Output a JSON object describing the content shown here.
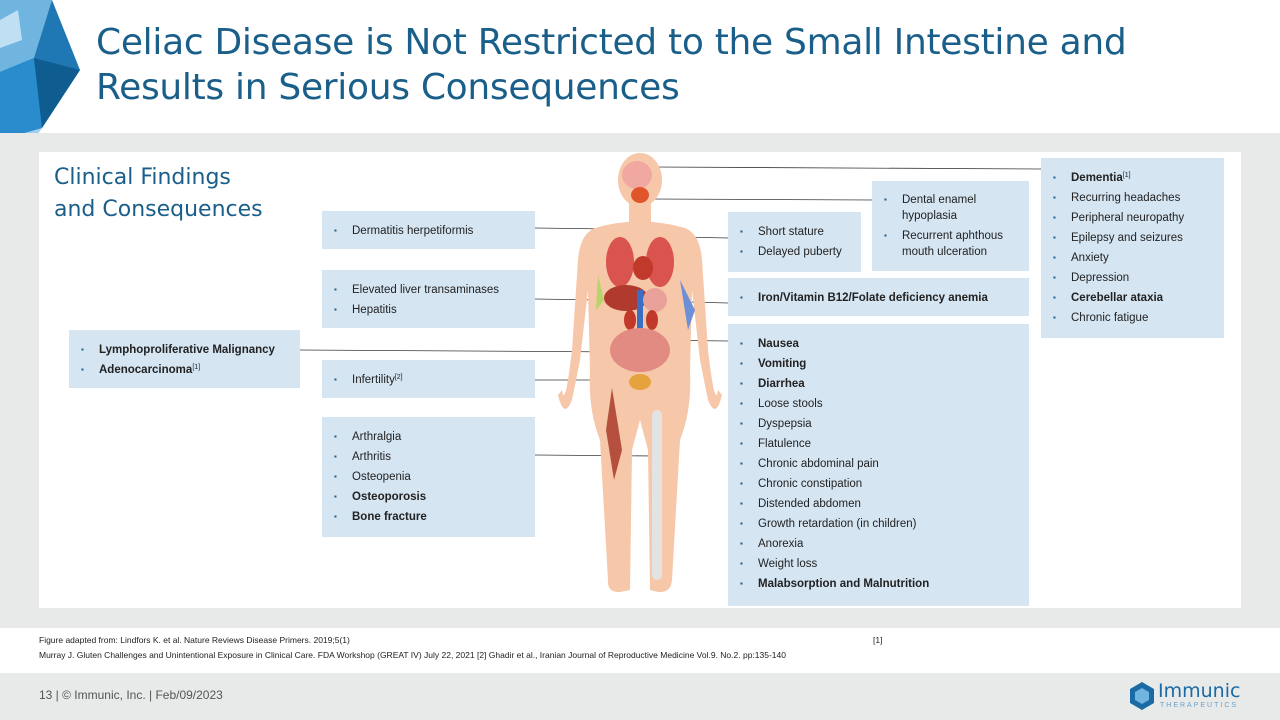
{
  "title": "Celiac Disease is Not Restricted to the Small Intestine and Results in Serious Consequences",
  "subtitle": {
    "line1": "Clinical Findings",
    "line2": "and Consequences"
  },
  "boxes": {
    "skin": [
      "Dermatitis herpetiformis"
    ],
    "liver": [
      "Elevated liver transaminases",
      "Hepatitis"
    ],
    "malignancy": {
      "item1": "Lymphoproliferative Malignancy",
      "item2": "Adenocarcinoma",
      "item2_ref": "[1]"
    },
    "fertility": {
      "item1": "Infertility",
      "item1_ref": "[2]"
    },
    "bones": [
      "Arthralgia",
      "Arthritis",
      "Osteopenia",
      "Osteoporosis",
      "Bone fracture"
    ],
    "growth": [
      "Short stature",
      "Delayed puberty"
    ],
    "mouth": [
      "Dental enamel hypoplasia",
      "Recurrent aphthous mouth ulceration"
    ],
    "anemia": [
      "Iron/Vitamin B12/Folate deficiency anemia"
    ],
    "gi": [
      "Nausea",
      "Vomiting",
      "Diarrhea",
      "Loose stools",
      "Dyspepsia",
      "Flatulence",
      "Chronic abdominal pain",
      "Chronic constipation",
      "Distended abdomen",
      "Growth retardation (in children)",
      "Anorexia",
      "Weight loss",
      "Malabsorption and Malnutrition"
    ],
    "neuro": {
      "item1": "Dementia",
      "item1_ref": "[1]",
      "rest": [
        "Recurring headaches",
        "Peripheral neuropathy",
        "Epilepsy and seizures",
        "Anxiety",
        "Depression",
        "Cerebellar ataxia",
        "Chronic fatigue"
      ]
    }
  },
  "footnotes": {
    "line1": "Figure adapted from: Lindfors K. et al. Nature Reviews Disease Primers. 2019;5(1)",
    "line1_ref": "[1]",
    "line2": "Murray J. Gluten Challenges and Unintentional Exposure in Clinical Care. FDA Workshop (GREAT IV) July 22, 2021 [2] Ghadir et al., Iranian Journal of Reproductive Medicine Vol.9. No.2. pp:135-140"
  },
  "footer": {
    "text": "13 | © Immunic, Inc. | Feb/09/2023",
    "logo_name": "Immunic",
    "logo_sub": "THERAPEUTICS"
  },
  "colors": {
    "accent": "#1a5f8a",
    "box": "#d5e5f2",
    "band": "#e8e9e9"
  }
}
